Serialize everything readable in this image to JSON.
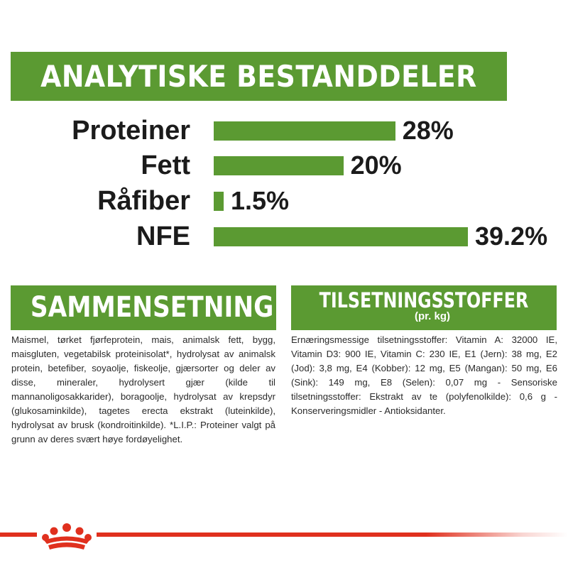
{
  "banner": {
    "title": "ANALYTISKE BESTANDDELER"
  },
  "chart_data": {
    "type": "bar",
    "orientation": "horizontal",
    "title": "ANALYTISKE BESTANDDELER",
    "categories": [
      "Proteiner",
      "Fett",
      "Råfiber",
      "NFE"
    ],
    "values": [
      28,
      20,
      1.5,
      39.2
    ],
    "value_labels": [
      "28%",
      "20%",
      "1.5%",
      "39.2%"
    ],
    "unit": "%",
    "xlim": [
      0,
      39.2
    ],
    "grid": false,
    "bar_color": "#5b9a32"
  },
  "composition": {
    "title": "SAMMENSETNING",
    "text": "Maismel, tørket fjørfeprotein, mais, animalsk fett, bygg, maisgluten, vegetabilsk proteinisolat*, hydrolysat av animalsk protein, betefiber, soyaolje, fiskeolje, gjærsorter og deler av disse, mineraler, hydrolysert gjær (kilde til mannanoligosakkarider), boragoolje, hydrolysat av krepsdyr (glukosaminkilde), tagetes erecta ekstrakt (luteinkilde), hydrolysat av brusk (kondroitinkilde). *L.I.P.: Proteiner valgt på grunn av deres svært høye fordøyelighet."
  },
  "additives": {
    "title": "TILSETNINGSSTOFFER",
    "subtitle": "(pr. kg)",
    "text": "Ernæringsmessige tilsetningsstoffer: Vitamin A: 32000 IE, Vitamin D3: 900 IE, Vitamin C: 230 IE, E1 (Jern): 38 mg, E2 (Jod): 3,8 mg, E4 (Kobber): 12 mg, E5 (Mangan): 50 mg, E6 (Sink): 149 mg, E8 (Selen): 0,07 mg - Sensoriske tilsetningsstoffer: Ekstrakt av te (polyfenolkilde): 0,6 g - Konserveringsmidler - Antioksidanter."
  },
  "colors": {
    "green": "#5b9a32",
    "red": "#e0301e",
    "text": "#222222"
  },
  "footer": {
    "logo_icon": "royal-canin-crown-icon"
  }
}
